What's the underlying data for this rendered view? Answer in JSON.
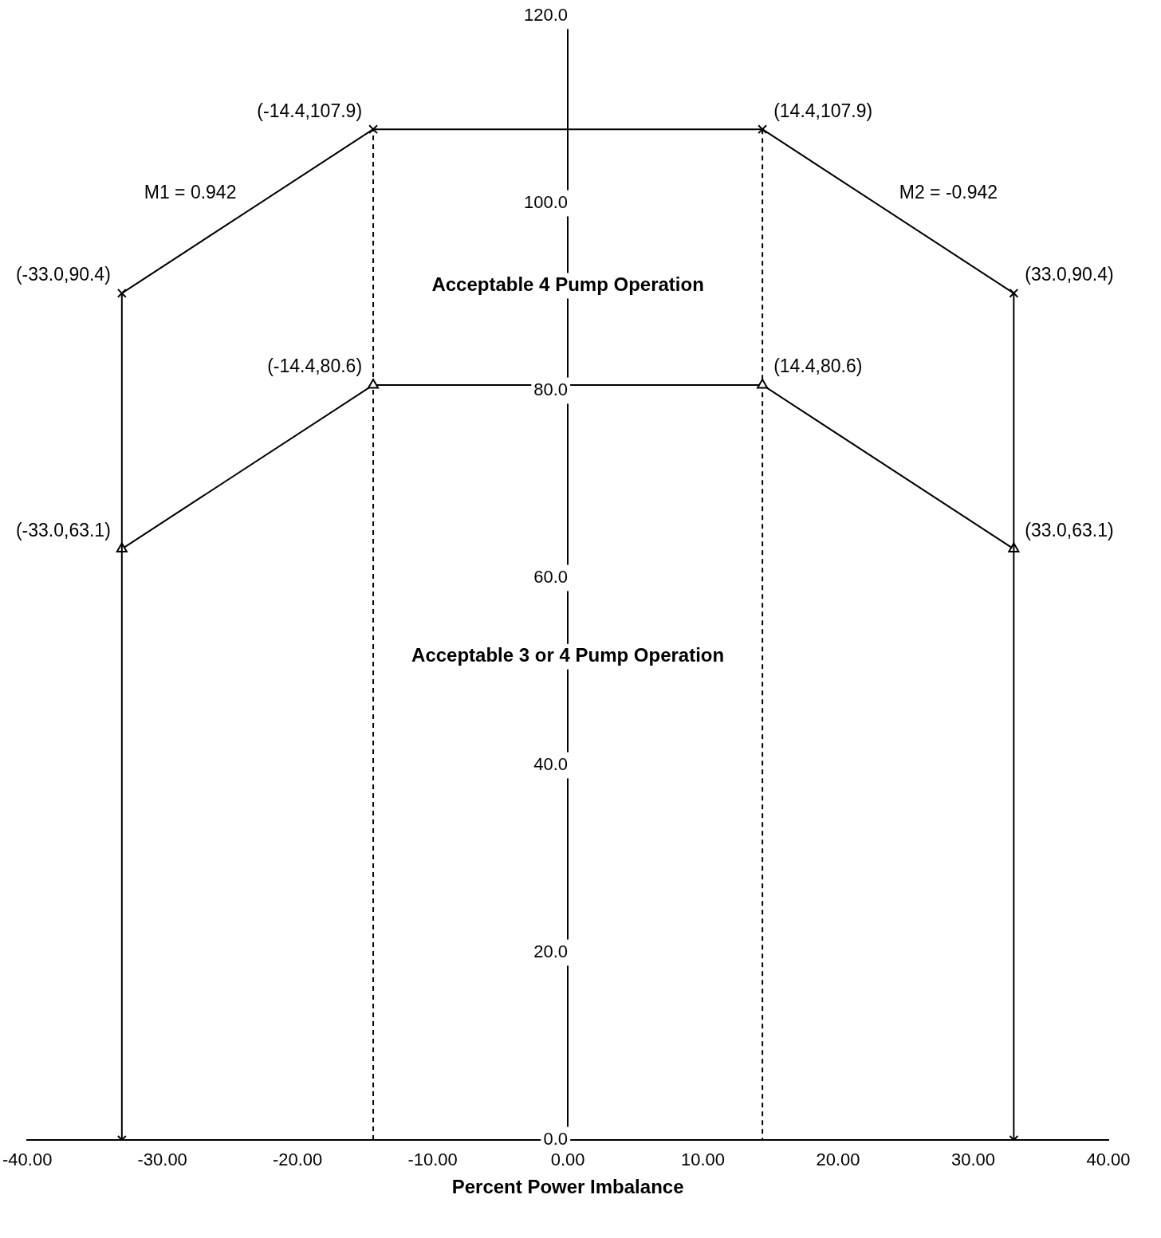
{
  "chart_data": {
    "type": "line",
    "xlabel": "Percent Power Imbalance",
    "xlim": [
      -40,
      40
    ],
    "ylim": [
      0,
      120
    ],
    "xticks": [
      {
        "value": -40,
        "label": "-40.00"
      },
      {
        "value": -30,
        "label": "-30.00"
      },
      {
        "value": -20,
        "label": "-20.00"
      },
      {
        "value": -10,
        "label": "-10.00"
      },
      {
        "value": 0,
        "label": "0.00"
      },
      {
        "value": 10,
        "label": "10.00"
      },
      {
        "value": 20,
        "label": "20.00"
      },
      {
        "value": 30,
        "label": "30.00"
      },
      {
        "value": 40,
        "label": "40.00"
      }
    ],
    "yticks": [
      {
        "value": 0,
        "label": "0.0"
      },
      {
        "value": 20,
        "label": "20.0"
      },
      {
        "value": 40,
        "label": "40.0"
      },
      {
        "value": 60,
        "label": "60.0"
      },
      {
        "value": 80,
        "label": "80.0"
      },
      {
        "value": 100,
        "label": "100.0"
      },
      {
        "value": 120,
        "label": "120.0"
      }
    ],
    "grid": false,
    "legend": false,
    "series": [
      {
        "color": "#000000",
        "marker": "cross",
        "line_style": "solid",
        "x": [
          -33,
          -33,
          -14.4,
          14.4,
          33,
          33
        ],
        "values": [
          0,
          90.4,
          107.9,
          107.9,
          90.4,
          0
        ]
      },
      {
        "color": "#000000",
        "marker": "triangle",
        "line_style": "solid",
        "x": [
          -33,
          -14.4,
          14.4,
          33
        ],
        "values": [
          63.1,
          80.6,
          80.6,
          63.1
        ]
      },
      {
        "color": "#000000",
        "marker": "none",
        "line_style": "dashed",
        "x": [
          -14.4,
          -14.4,
          0,
          14.4,
          14.4
        ],
        "values": [
          0,
          107.9,
          null,
          107.9,
          0
        ]
      }
    ],
    "annotations": [
      {
        "text": "(-33.0,90.4)",
        "x": -33,
        "y": 90.4
      },
      {
        "text": "(-14.4,107.9)",
        "x": -14.4,
        "y": 107.9
      },
      {
        "text": "(14.4,107.9)",
        "x": 14.4,
        "y": 107.9
      },
      {
        "text": "(33.0,90.4)",
        "x": 33,
        "y": 90.4
      },
      {
        "text": "(-33.0,63.1)",
        "x": -33,
        "y": 63.1
      },
      {
        "text": "(-14.4,80.6)",
        "x": -14.4,
        "y": 80.6
      },
      {
        "text": "(14.4,80.6)",
        "x": 14.4,
        "y": 80.6
      },
      {
        "text": "(33.0,63.1)",
        "x": 33,
        "y": 63.1
      },
      {
        "text": "M1 = 0.942",
        "x": -23.7,
        "y": 99.2
      },
      {
        "text": "M2 = -0.942",
        "x": 23.7,
        "y": 99.2
      },
      "Acceptable 4 Pump Operation",
      "Acceptable 3 or 4 Pump Operation"
    ]
  }
}
